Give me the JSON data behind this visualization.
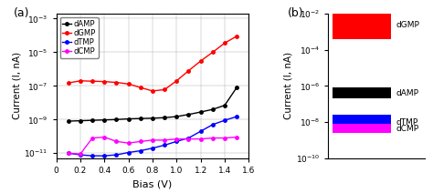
{
  "panel_a_label": "(a)",
  "panel_b_label": "(b)",
  "bias": [
    0.1,
    0.2,
    0.3,
    0.4,
    0.5,
    0.6,
    0.7,
    0.8,
    0.9,
    1.0,
    1.1,
    1.2,
    1.3,
    1.4,
    1.5
  ],
  "dAMP": [
    8e-10,
    8.5e-10,
    9e-10,
    9.5e-10,
    1e-09,
    1.1e-09,
    1.15e-09,
    1.2e-09,
    1.3e-09,
    1.5e-09,
    2e-09,
    2.8e-09,
    4e-09,
    7e-09,
    8e-08
  ],
  "dGMP": [
    1.5e-07,
    2e-07,
    1.9e-07,
    1.8e-07,
    1.6e-07,
    1.3e-07,
    8e-08,
    5e-08,
    6e-08,
    2e-07,
    8e-07,
    3e-06,
    1e-05,
    3.5e-05,
    9e-05
  ],
  "dTMP": [
    1e-11,
    8e-12,
    7e-12,
    7e-12,
    8e-12,
    1.1e-11,
    1.4e-11,
    2e-11,
    3e-11,
    5e-11,
    8e-11,
    2e-10,
    5e-10,
    9e-10,
    1.5e-09
  ],
  "dCMP": [
    1e-11,
    9e-12,
    8e-11,
    9e-11,
    5e-11,
    4e-11,
    5e-11,
    6e-11,
    6e-11,
    7e-11,
    7e-11,
    7e-11,
    8e-11,
    8e-11,
    9e-11
  ],
  "colors": {
    "dAMP": "#000000",
    "dGMP": "#ff0000",
    "dTMP": "#0000ff",
    "dCMP": "#ff00ff"
  },
  "bar_values": {
    "dGMP": [
      0.0004,
      0.012
    ],
    "dAMP": [
      2e-07,
      8e-07
    ],
    "dTMP": [
      4e-09,
      2.5e-08
    ],
    "dCMP": [
      2.5e-09,
      8e-09
    ]
  },
  "xlabel_a": "Bias (V)",
  "ylabel": "Current (I, nA)",
  "xlim_a": [
    0.0,
    1.6
  ],
  "ylim_a": [
    5e-12,
    0.002
  ],
  "ylim_b": [
    1e-10,
    0.01
  ],
  "xticks_a": [
    0.0,
    0.2,
    0.4,
    0.6,
    0.8,
    1.0,
    1.2,
    1.4,
    1.6
  ],
  "yticks_a": [
    1e-11,
    1e-09,
    1e-07,
    1e-05,
    0.001
  ],
  "yticks_b": [
    1e-10,
    1e-08,
    1e-06,
    0.0001,
    0.01
  ]
}
